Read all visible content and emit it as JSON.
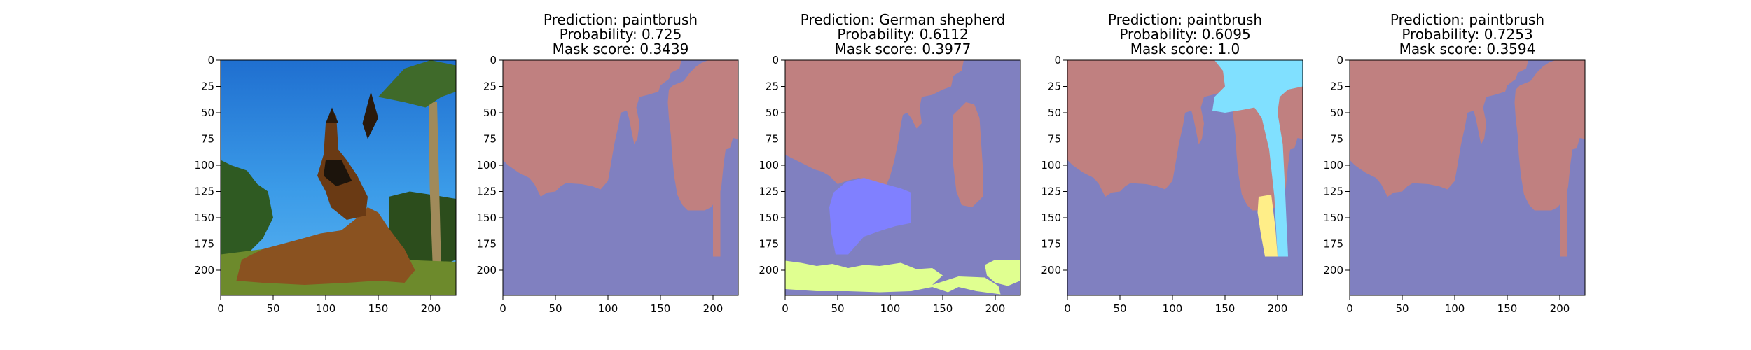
{
  "figure": {
    "panels": [
      {
        "kind": "photo",
        "title_lines": [],
        "image": "dog-photo"
      },
      {
        "kind": "mask",
        "title_lines": [
          "Prediction: paintbrush",
          "Probability: 0.725",
          "Mask score: 0.3439"
        ],
        "segments": [
          {
            "name": "background",
            "color": "#8080c0"
          },
          {
            "name": "sky",
            "color": "#c08080"
          }
        ]
      },
      {
        "kind": "mask",
        "title_lines": [
          "Prediction: German shepherd",
          "Probability: 0.6112",
          "Mask score: 0.3977"
        ],
        "segments": [
          {
            "name": "background",
            "color": "#8080c0"
          },
          {
            "name": "sky",
            "color": "#c08080"
          },
          {
            "name": "dog-head",
            "color": "#8080ff"
          },
          {
            "name": "grass",
            "color": "#e0ff90"
          }
        ]
      },
      {
        "kind": "mask",
        "title_lines": [
          "Prediction: paintbrush",
          "Probability: 0.6095",
          "Mask score: 1.0"
        ],
        "segments": [
          {
            "name": "background",
            "color": "#8080c0"
          },
          {
            "name": "sky",
            "color": "#c08080"
          },
          {
            "name": "palm",
            "color": "#80e0ff"
          },
          {
            "name": "trunk-patch",
            "color": "#ffee88"
          }
        ]
      },
      {
        "kind": "mask",
        "title_lines": [
          "Prediction: paintbrush",
          "Probability: 0.7253",
          "Mask score: 0.3594"
        ],
        "segments": [
          {
            "name": "background",
            "color": "#8080c0"
          },
          {
            "name": "sky",
            "color": "#c08080"
          }
        ]
      }
    ]
  },
  "chart_data": {
    "type": "heatmap",
    "image_size": [
      224,
      224
    ],
    "x_ticks": [
      0,
      50,
      100,
      150,
      200
    ],
    "y_ticks": [
      0,
      25,
      50,
      75,
      100,
      125,
      150,
      175,
      200
    ],
    "x_tick_labels": [
      "0",
      "50",
      "100",
      "150",
      "200"
    ],
    "y_tick_labels": [
      "0",
      "25",
      "50",
      "75",
      "100",
      "125",
      "150",
      "175",
      "200"
    ],
    "xlim": [
      0,
      224
    ],
    "ylim": [
      224,
      0
    ],
    "panels": [
      {
        "title": "",
        "content": "input image"
      },
      {
        "title": [
          "Prediction: paintbrush",
          "Probability: 0.725",
          "Mask score: 0.3439"
        ]
      },
      {
        "title": [
          "Prediction: German shepherd",
          "Probability: 0.6112",
          "Mask score: 0.3977"
        ]
      },
      {
        "title": [
          "Prediction: paintbrush",
          "Probability: 0.6095",
          "Mask score: 1.0"
        ]
      },
      {
        "title": [
          "Prediction: paintbrush",
          "Probability: 0.7253",
          "Mask score: 0.3594"
        ]
      }
    ]
  }
}
